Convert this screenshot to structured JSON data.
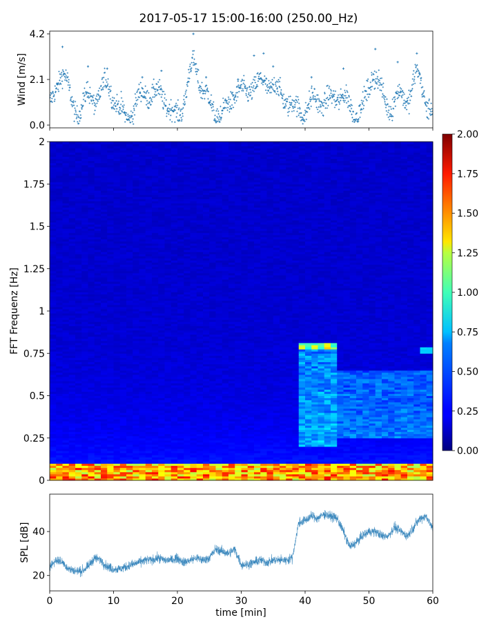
{
  "figure": {
    "title": "2017-05-17 15:00-16:00 (250.00_Hz)"
  },
  "chart_data": [
    {
      "type": "scatter",
      "ylabel": "Wind [m/s]",
      "xlabel": "",
      "xlim": [
        0,
        60
      ],
      "ylim": [
        0,
        4.2
      ],
      "yticks": [
        "0.0",
        "2.1",
        "4.2"
      ],
      "color": "#1f77b4",
      "marker": "+",
      "peaks": [
        {
          "x": 2.0,
          "y": 3.6
        },
        {
          "x": 6.0,
          "y": 2.7
        },
        {
          "x": 9.0,
          "y": 2.6
        },
        {
          "x": 14.5,
          "y": 2.2
        },
        {
          "x": 17.5,
          "y": 2.5
        },
        {
          "x": 22.5,
          "y": 4.2
        },
        {
          "x": 24.5,
          "y": 2.2
        },
        {
          "x": 29.5,
          "y": 2.1
        },
        {
          "x": 32.0,
          "y": 3.2
        },
        {
          "x": 33.5,
          "y": 3.3
        },
        {
          "x": 35.0,
          "y": 2.7
        },
        {
          "x": 41.0,
          "y": 2.2
        },
        {
          "x": 46.0,
          "y": 2.6
        },
        {
          "x": 51.0,
          "y": 3.5
        },
        {
          "x": 54.5,
          "y": 2.9
        },
        {
          "x": 57.5,
          "y": 3.3
        }
      ]
    },
    {
      "type": "heatmap",
      "ylabel": "FFT Frequenz [Hz]",
      "xlabel": "",
      "xlim": [
        0,
        60
      ],
      "ylim": [
        0,
        2
      ],
      "yticks": [
        "0",
        "0.25",
        "0.5",
        "0.75",
        "1",
        "1.25",
        "1.5",
        "1.75",
        "2"
      ],
      "colormap": "jet",
      "clim": [
        0,
        2
      ],
      "colorbar_ticks": [
        "0.00",
        "0.25",
        "0.50",
        "0.75",
        "1.00",
        "1.25",
        "1.50",
        "1.75",
        "2.00"
      ],
      "features": [
        {
          "description_value": "low frequency band",
          "f_max": 0.1,
          "level": 1.3
        },
        {
          "t_start": 39,
          "t_end": 45,
          "f": 0.79,
          "level": 1.4
        },
        {
          "t_start": 39,
          "t_end": 45,
          "f_low": 0.2,
          "f_high": 0.78,
          "level": 0.7
        },
        {
          "t_start": 45,
          "t_end": 60,
          "f_low": 0.25,
          "f_high": 0.65,
          "level": 0.6
        },
        {
          "t_start": 58,
          "t_end": 60,
          "f": 0.77,
          "level": 0.9
        }
      ]
    },
    {
      "type": "line",
      "ylabel": "SPL [dB]",
      "xlabel": "time [min]",
      "xlim": [
        0,
        60
      ],
      "ylim": [
        13,
        57
      ],
      "yticks": [
        "20",
        "40"
      ],
      "xticks": [
        "0",
        "10",
        "20",
        "30",
        "40",
        "50",
        "60"
      ],
      "color": "#1f77b4",
      "x": [
        0,
        1,
        2,
        3,
        4,
        5,
        6,
        7,
        8,
        9,
        10,
        11,
        12,
        13,
        14,
        15,
        16,
        17,
        18,
        19,
        20,
        21,
        22,
        23,
        24,
        25,
        26,
        27,
        28,
        29,
        30,
        31,
        32,
        33,
        34,
        35,
        36,
        37,
        38,
        39,
        40,
        41,
        42,
        43,
        44,
        45,
        46,
        47,
        48,
        49,
        50,
        51,
        52,
        53,
        54,
        55,
        56,
        57,
        58,
        59,
        60
      ],
      "y": [
        24,
        27,
        26,
        23,
        22,
        22,
        24,
        28,
        27,
        24,
        23,
        23,
        24,
        25,
        26,
        27,
        27,
        28,
        27,
        27,
        28,
        26,
        27,
        28,
        27,
        28,
        32,
        31,
        30,
        32,
        25,
        25,
        26,
        27,
        26,
        27,
        27,
        27,
        28,
        44,
        45,
        47,
        46,
        48,
        47,
        46,
        40,
        33,
        35,
        38,
        40,
        40,
        38,
        38,
        42,
        40,
        38,
        42,
        46,
        47,
        41
      ]
    }
  ]
}
